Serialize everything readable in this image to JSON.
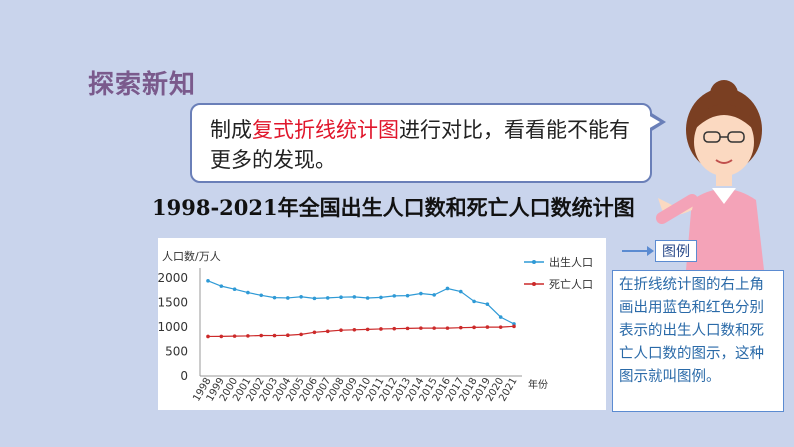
{
  "section_title": "探索新知",
  "bubble": {
    "pre": "制成",
    "highlight": "复式折线统计图",
    "post": "进行对比，看看能不能有更多的发现。"
  },
  "chart_title": "1998-2021年全国出生人口数和死亡人口数统计图",
  "legend_tag": "图例",
  "explanation": "在折线统计图的右上角画出用蓝色和红色分别表示的出生人口数和死亡人口数的图示，这种图示就叫图例。",
  "colors": {
    "birth": "#2f9ad6",
    "death": "#cc2a2a",
    "accent_red": "#e0162b",
    "title_purple": "#7a5a8c"
  },
  "chart_data": {
    "type": "line",
    "ylabel": "人口数/万人",
    "xlabel": "年份",
    "ylim": [
      0,
      2000
    ],
    "yticks": [
      0,
      500,
      1000,
      1500,
      2000
    ],
    "x": [
      "1998",
      "1999",
      "2000",
      "2001",
      "2002",
      "2003",
      "2004",
      "2005",
      "2006",
      "2007",
      "2008",
      "2009",
      "2010",
      "2011",
      "2012",
      "2013",
      "2014",
      "2015",
      "2016",
      "2017",
      "2018",
      "2019",
      "2020",
      "2021"
    ],
    "series": [
      {
        "name": "出生人口",
        "color": "#2f9ad6",
        "values": [
          1942,
          1834,
          1771,
          1702,
          1647,
          1599,
          1593,
          1617,
          1584,
          1594,
          1608,
          1615,
          1592,
          1604,
          1635,
          1640,
          1683,
          1655,
          1786,
          1723,
          1523,
          1465,
          1202,
          1062
        ]
      },
      {
        "name": "死亡人口",
        "color": "#cc2a2a",
        "values": [
          807,
          808,
          814,
          818,
          826,
          825,
          832,
          849,
          892,
          913,
          935,
          943,
          951,
          960,
          966,
          972,
          977,
          977,
          977,
          986,
          993,
          998,
          997,
          1014
        ]
      }
    ],
    "legend_position": "top-right",
    "grid": false
  }
}
